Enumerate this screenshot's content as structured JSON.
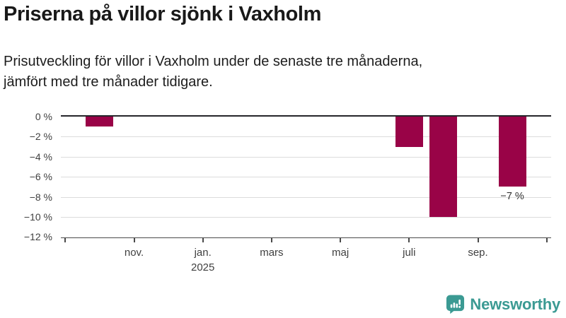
{
  "header": {
    "title": "Priserna på villor sjönk i Vaxholm",
    "subtitle_lines": [
      "Prisutveckling för villor i Vaxholm under de senaste tre månaderna,",
      "jämfört med tre månader tidigare."
    ]
  },
  "chart_data": {
    "type": "bar",
    "title": "Priserna på villor sjönk i Vaxholm",
    "subtitle": "Prisutveckling för villor i Vaxholm under de senaste tre månaderna, jämfört med tre månader tidigare.",
    "unit": "%",
    "ylim": [
      -12,
      0
    ],
    "grid": true,
    "legend": false,
    "bar_color": "#990347",
    "y_ticks": [
      {
        "value": 0,
        "label": "0 %"
      },
      {
        "value": -2,
        "label": "−2 %"
      },
      {
        "value": -4,
        "label": "−4 %"
      },
      {
        "value": -6,
        "label": "−6 %"
      },
      {
        "value": -8,
        "label": "−8 %"
      },
      {
        "value": -10,
        "label": "−10 %"
      },
      {
        "value": -12,
        "label": "−12 %"
      }
    ],
    "x_axis": {
      "start_month": "sep 2024",
      "end_month": "nov 2025",
      "ticks": [
        {
          "month_index": 0,
          "label": ""
        },
        {
          "month_index": 2,
          "label": "nov."
        },
        {
          "month_index": 4,
          "label": "jan.",
          "sublabel": "2025"
        },
        {
          "month_index": 6,
          "label": "mars"
        },
        {
          "month_index": 8,
          "label": "maj"
        },
        {
          "month_index": 10,
          "label": "juli"
        },
        {
          "month_index": 12,
          "label": "sep."
        },
        {
          "month_index": 14,
          "label": ""
        }
      ]
    },
    "bars": [
      {
        "month": "okt 2024",
        "month_index": 1,
        "value": -1
      },
      {
        "month": "juli 2025",
        "month_index": 10,
        "value": -3
      },
      {
        "month": "aug 2025",
        "month_index": 11,
        "value": -10
      },
      {
        "month": "okt 2025",
        "month_index": 13,
        "value": -7,
        "data_label": "−7 %"
      }
    ]
  },
  "branding": {
    "logo_text": "Newsworthy",
    "logo_color": "#3b9a93",
    "logo_icon": "bar-chart-speech-bubble-icon"
  }
}
